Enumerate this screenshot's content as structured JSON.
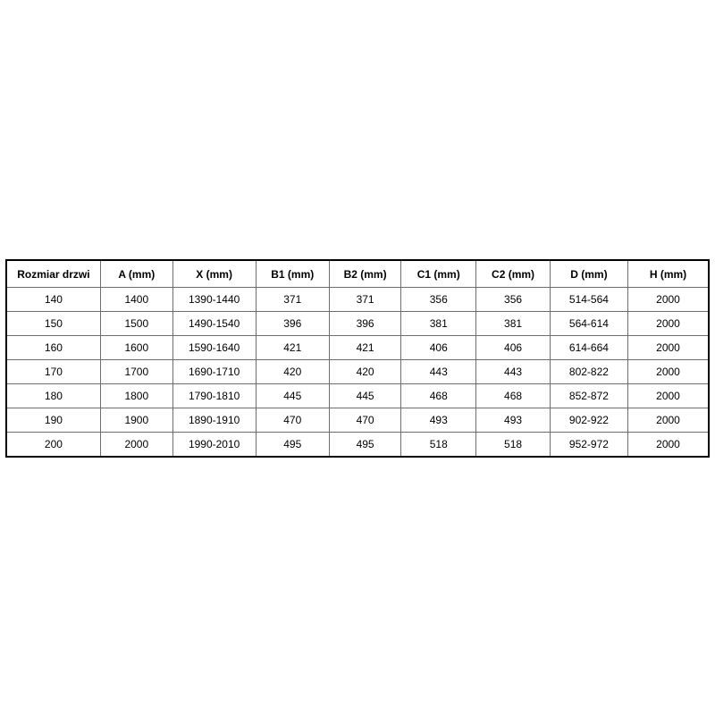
{
  "table": {
    "columns": [
      "Rozmiar drzwi",
      "A (mm)",
      "X (mm)",
      "B1 (mm)",
      "B2 (mm)",
      "C1 (mm)",
      "C2 (mm)",
      "D (mm)",
      "H (mm)"
    ],
    "rows": [
      [
        "140",
        "1400",
        "1390-1440",
        "371",
        "371",
        "356",
        "356",
        "514-564",
        "2000"
      ],
      [
        "150",
        "1500",
        "1490-1540",
        "396",
        "396",
        "381",
        "381",
        "564-614",
        "2000"
      ],
      [
        "160",
        "1600",
        "1590-1640",
        "421",
        "421",
        "406",
        "406",
        "614-664",
        "2000"
      ],
      [
        "170",
        "1700",
        "1690-1710",
        "420",
        "420",
        "443",
        "443",
        "802-822",
        "2000"
      ],
      [
        "180",
        "1800",
        "1790-1810",
        "445",
        "445",
        "468",
        "468",
        "852-872",
        "2000"
      ],
      [
        "190",
        "1900",
        "1890-1910",
        "470",
        "470",
        "493",
        "493",
        "902-922",
        "2000"
      ],
      [
        "200",
        "2000",
        "1990-2010",
        "495",
        "495",
        "518",
        "518",
        "952-972",
        "2000"
      ]
    ]
  },
  "colors": {
    "page_background": "#ffffff",
    "table_outer_border": "#000000",
    "table_grid_lines": "#6e6e6e",
    "text": "#000000"
  }
}
